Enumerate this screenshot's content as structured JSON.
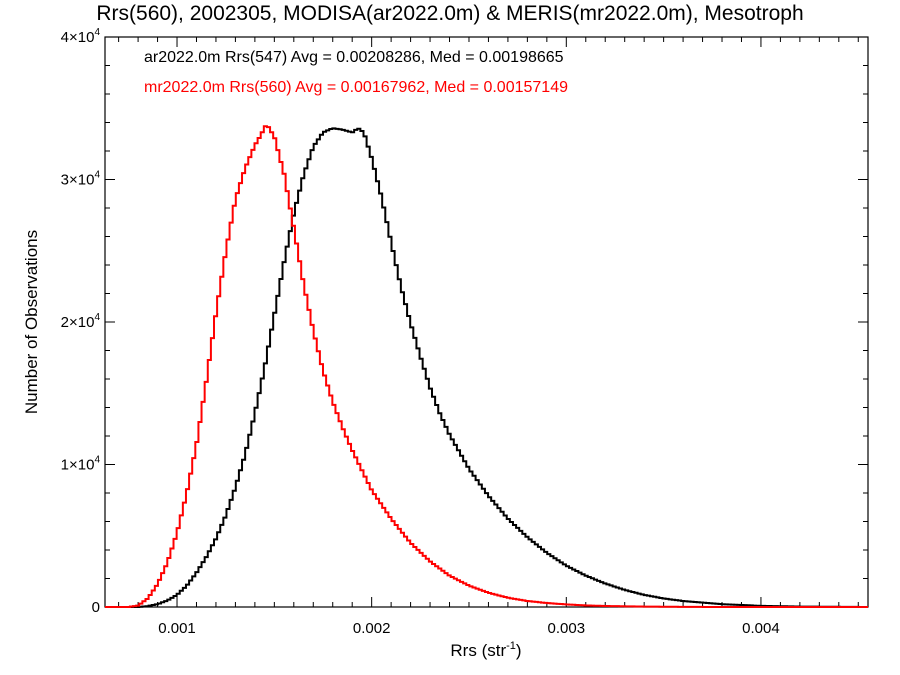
{
  "chart_data": {
    "type": "line",
    "title": "Rrs(560), 2002305, MODISA(ar2022.0m) & MERIS(mr2022.0m), Mesotroph",
    "xlabel": "Rrs (str",
    "xlabel_superscript": "-1",
    "xlabel_suffix": ")",
    "ylabel": "Number of Observations",
    "xlim": [
      0.00063,
      0.00455
    ],
    "ylim": [
      0,
      40000
    ],
    "x_ticks": [
      {
        "value": 0.001,
        "label": "0.001"
      },
      {
        "value": 0.002,
        "label": "0.002"
      },
      {
        "value": 0.003,
        "label": "0.003"
      },
      {
        "value": 0.004,
        "label": "0.004"
      }
    ],
    "y_ticks": [
      {
        "value": 0,
        "label": "0",
        "exp": ""
      },
      {
        "value": 10000,
        "label": "1×10",
        "exp": "4"
      },
      {
        "value": 20000,
        "label": "2×10",
        "exp": "4"
      },
      {
        "value": 30000,
        "label": "3×10",
        "exp": "4"
      },
      {
        "value": 40000,
        "label": "4×10",
        "exp": "4"
      }
    ],
    "grid": false,
    "legend_position": "top-left",
    "series": [
      {
        "label": "ar2022.0m Rrs(547) Avg = 0.00208286, Med = 0.00198665",
        "color": "#000000",
        "x": [
          0.00063,
          0.0007,
          0.0008,
          0.00085,
          0.0009,
          0.00095,
          0.001,
          0.00105,
          0.0011,
          0.00115,
          0.0012,
          0.00125,
          0.0013,
          0.00135,
          0.0014,
          0.00145,
          0.0015,
          0.00155,
          0.0016,
          0.00165,
          0.0017,
          0.00175,
          0.0018,
          0.00185,
          0.0019,
          0.00193,
          0.00196,
          0.002,
          0.00205,
          0.0021,
          0.00215,
          0.0022,
          0.00225,
          0.0023,
          0.00235,
          0.0024,
          0.0025,
          0.0026,
          0.0027,
          0.0028,
          0.0029,
          0.003,
          0.0031,
          0.0032,
          0.0033,
          0.0034,
          0.0035,
          0.0036,
          0.0038,
          0.004,
          0.0042,
          0.00455
        ],
        "y": [
          0,
          0,
          0,
          60,
          200,
          450,
          850,
          1500,
          2400,
          3500,
          4800,
          6400,
          8400,
          10700,
          13600,
          16800,
          20500,
          24200,
          27600,
          30300,
          32300,
          33300,
          33600,
          33500,
          33300,
          33600,
          33300,
          31500,
          28800,
          25600,
          22500,
          19900,
          17600,
          15400,
          13600,
          12100,
          9700,
          7800,
          6200,
          4900,
          3800,
          2900,
          2200,
          1650,
          1200,
          850,
          600,
          420,
          200,
          80,
          30,
          0
        ]
      },
      {
        "label": "mr2022.0m Rrs(560) Avg = 0.00167962, Med = 0.00157149",
        "color": "#ff0000",
        "x": [
          0.00063,
          0.00075,
          0.0008,
          0.00085,
          0.0009,
          0.00095,
          0.001,
          0.00105,
          0.0011,
          0.00115,
          0.0012,
          0.00125,
          0.0013,
          0.00135,
          0.0014,
          0.00143,
          0.00146,
          0.0015,
          0.00155,
          0.0016,
          0.00165,
          0.0017,
          0.00175,
          0.0018,
          0.00185,
          0.0019,
          0.00195,
          0.002,
          0.0021,
          0.0022,
          0.0023,
          0.0024,
          0.0025,
          0.0026,
          0.0027,
          0.0028,
          0.0029,
          0.003,
          0.0031,
          0.0032,
          0.0034,
          0.0036,
          0.0038,
          0.00455
        ],
        "y": [
          0,
          0,
          100,
          600,
          1600,
          3100,
          5200,
          8000,
          11400,
          15800,
          20600,
          24900,
          28600,
          30800,
          32400,
          33100,
          33900,
          33000,
          30400,
          26600,
          22700,
          19400,
          16600,
          14400,
          12600,
          11000,
          9600,
          8200,
          6200,
          4500,
          3200,
          2200,
          1500,
          1000,
          650,
          420,
          280,
          180,
          110,
          70,
          30,
          10,
          0,
          0
        ]
      }
    ]
  }
}
